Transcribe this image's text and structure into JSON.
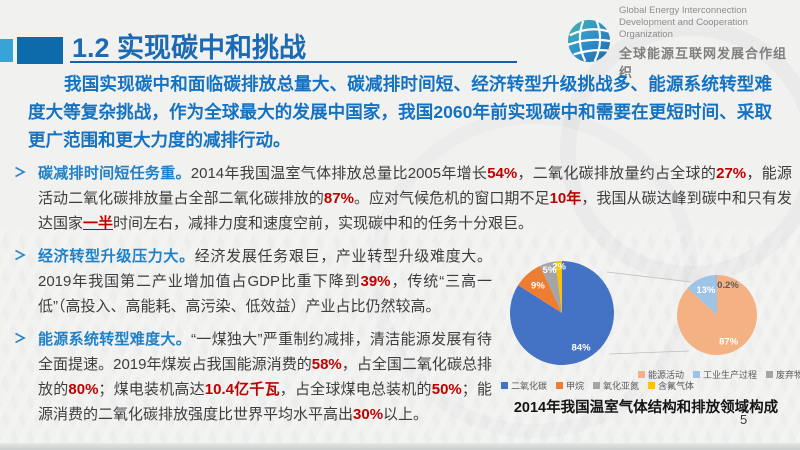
{
  "header": {
    "title": "1.2 实现碳中和挑战"
  },
  "logo": {
    "en_line1": "Global Energy Interconnection",
    "en_line2": "Development and Cooperation Organization",
    "cn": "全球能源互联网发展合作组织"
  },
  "intro": "我国实现碳中和面临碳排放总量大、碳减排时间短、经济转型升级挑战多、能源系统转型难度大等复杂挑战，作为全球最大的发展中国家，我国2060年前实现碳中和需要在更短时间、采取更广范围和更大力度的减排行动。",
  "bullets": [
    {
      "segments": [
        {
          "t": "碳减排时间短任务重。",
          "s": "lead"
        },
        {
          "t": "2014年我国温室气体排放总量比2005年增长",
          "s": "n"
        },
        {
          "t": "54%",
          "s": "red"
        },
        {
          "t": "，二氧化碳排放量约占全球的",
          "s": "n"
        },
        {
          "t": "27%",
          "s": "red"
        },
        {
          "t": "，能源活动二氧化碳排放量占全部二氧化碳排放的",
          "s": "n"
        },
        {
          "t": "87%",
          "s": "red"
        },
        {
          "t": "。应对气候危机的窗口期不足",
          "s": "n"
        },
        {
          "t": "10年",
          "s": "red"
        },
        {
          "t": "，我国从碳达峰到碳中和只有发达国家",
          "s": "n"
        },
        {
          "t": "一半",
          "s": "redu"
        },
        {
          "t": "时间左右，减排力度和速度空前，实现碳中和的任务十分艰巨。",
          "s": "n"
        }
      ]
    },
    {
      "segments": [
        {
          "t": "经济转型升级压力大。",
          "s": "lead"
        },
        {
          "t": "经济发展任务艰巨，产业转型升级难度大。2019年我国第二产业增加值占GDP比重下降到",
          "s": "n"
        },
        {
          "t": "39%",
          "s": "red"
        },
        {
          "t": "，传统“三高一低”（高投入、高能耗、高污染、低效益）产业占比仍然较高。",
          "s": "n"
        }
      ]
    },
    {
      "segments": [
        {
          "t": "能源系统转型难度大。",
          "s": "lead"
        },
        {
          "t": "“一煤独大”严重制约减排，清洁能源发展有待全面提速。2019年煤炭占我国能源消费的",
          "s": "n"
        },
        {
          "t": "58%",
          "s": "red"
        },
        {
          "t": "，占全国二氧化碳总排放的",
          "s": "n"
        },
        {
          "t": "80%",
          "s": "red"
        },
        {
          "t": "；煤电装机高达",
          "s": "n"
        },
        {
          "t": "10.4亿千瓦",
          "s": "red"
        },
        {
          "t": "，占全球煤电总装机的",
          "s": "n"
        },
        {
          "t": "50%",
          "s": "red"
        },
        {
          "t": "；能源消费的二氧化碳排放强度比世界平均水平高出",
          "s": "n"
        },
        {
          "t": "30%",
          "s": "red"
        },
        {
          "t": "以上。",
          "s": "n"
        }
      ]
    }
  ],
  "chart_data": [
    {
      "type": "pie",
      "name": "温室气体结构",
      "labels": [
        "二氧化碳",
        "甲烷",
        "氧化亚氮",
        "含氟气体"
      ],
      "values": [
        84,
        9,
        5,
        2
      ],
      "value_labels": [
        "84%",
        "9%",
        "5%",
        "2%"
      ],
      "colors": [
        "#4472c4",
        "#ed7d31",
        "#a5a5a5",
        "#ffc000"
      ],
      "label_layout": [
        {
          "fr": 0.76,
          "fill": "#ffffff"
        },
        {
          "fr": 0.7,
          "fill": "#ffffff"
        },
        {
          "fr": 0.86,
          "fill": "#ffffff"
        },
        {
          "fr": 0.9,
          "fill": "#ffffff"
        }
      ],
      "legend_position": "bottom"
    },
    {
      "type": "pie",
      "name": "排放领域",
      "labels": [
        "能源活动",
        "工业生产过程",
        "废弃物处理"
      ],
      "values": [
        87,
        13,
        0.2
      ],
      "value_labels": [
        "87%",
        "13%",
        "0.2%"
      ],
      "colors": [
        "#f4b183",
        "#9dc3e6",
        "#a5a5a5"
      ],
      "label_layout": [
        {
          "fr": 0.72,
          "fill": "#ffffff"
        },
        {
          "fr": 0.68,
          "fill": "#ffffff"
        },
        {
          "fr": 0.8,
          "fill": "#595959",
          "angle": 20
        }
      ],
      "legend_position": "bottom"
    }
  ],
  "chart_caption": "2014年我国温室气体结构和排放领域构成",
  "page_number": "5",
  "colors": {
    "title_blue": "#1b6ab3",
    "lead_blue": "#2181c8",
    "highlight_red": "#c00000"
  }
}
